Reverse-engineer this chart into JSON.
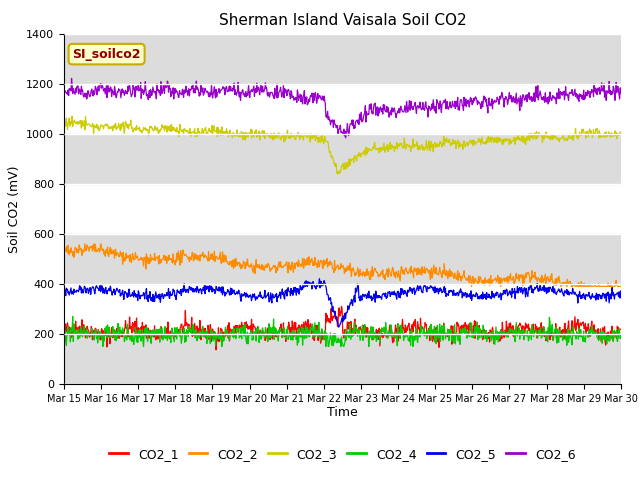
{
  "title": "Sherman Island Vaisala Soil CO2",
  "ylabel": "Soil CO2 (mV)",
  "xlabel": "Time",
  "ylim": [
    0,
    1400
  ],
  "label_text": "SI_soilco2",
  "series_colors": {
    "CO2_1": "#ff0000",
    "CO2_2": "#ff8c00",
    "CO2_3": "#cccc00",
    "CO2_4": "#00cc00",
    "CO2_5": "#0000ee",
    "CO2_6": "#9900cc"
  },
  "band_color": "#dcdcdc",
  "yticks": [
    0,
    200,
    400,
    600,
    800,
    1000,
    1200,
    1400
  ],
  "tick_days": [
    15,
    16,
    17,
    18,
    19,
    20,
    21,
    22,
    23,
    24,
    25,
    26,
    27,
    28,
    29,
    30
  ],
  "n_points": 960
}
